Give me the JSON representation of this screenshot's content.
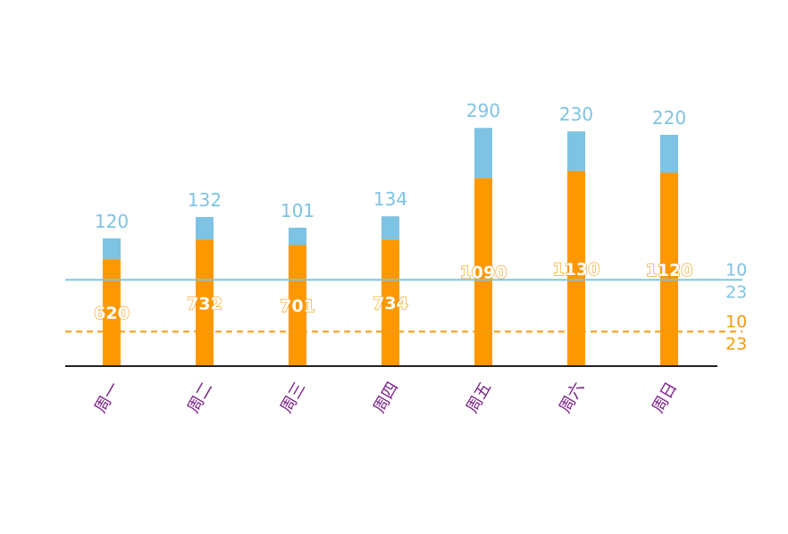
{
  "chart_data": {
    "type": "bar",
    "stacked": true,
    "categories": [
      "周一",
      "周二",
      "周三",
      "周四",
      "周五",
      "周六",
      "周日"
    ],
    "series": [
      {
        "values": [
          620,
          732,
          701,
          734,
          1090,
          1130,
          1120
        ],
        "color": "#ff9800",
        "label_position": "inside"
      },
      {
        "values": [
          120,
          132,
          101,
          134,
          290,
          230,
          220
        ],
        "color": "#7ec3e3",
        "label_position": "top"
      }
    ],
    "reference_lines": [
      {
        "value": 500,
        "label_line1": "10",
        "label_line2": "23",
        "color": "#7ec3e3",
        "style": "solid"
      },
      {
        "value": 200,
        "label_line1": "10",
        "label_line2": "23",
        "color": "#f39c12",
        "style": "dashed"
      }
    ],
    "ylim": [
      0,
      1600
    ],
    "xlabel": "",
    "ylabel": "",
    "title": "",
    "x_tick_rotation_deg": -60,
    "axis_color": "#222222",
    "category_label_color": "#7b1f8a",
    "grid": false,
    "legend": "none"
  }
}
